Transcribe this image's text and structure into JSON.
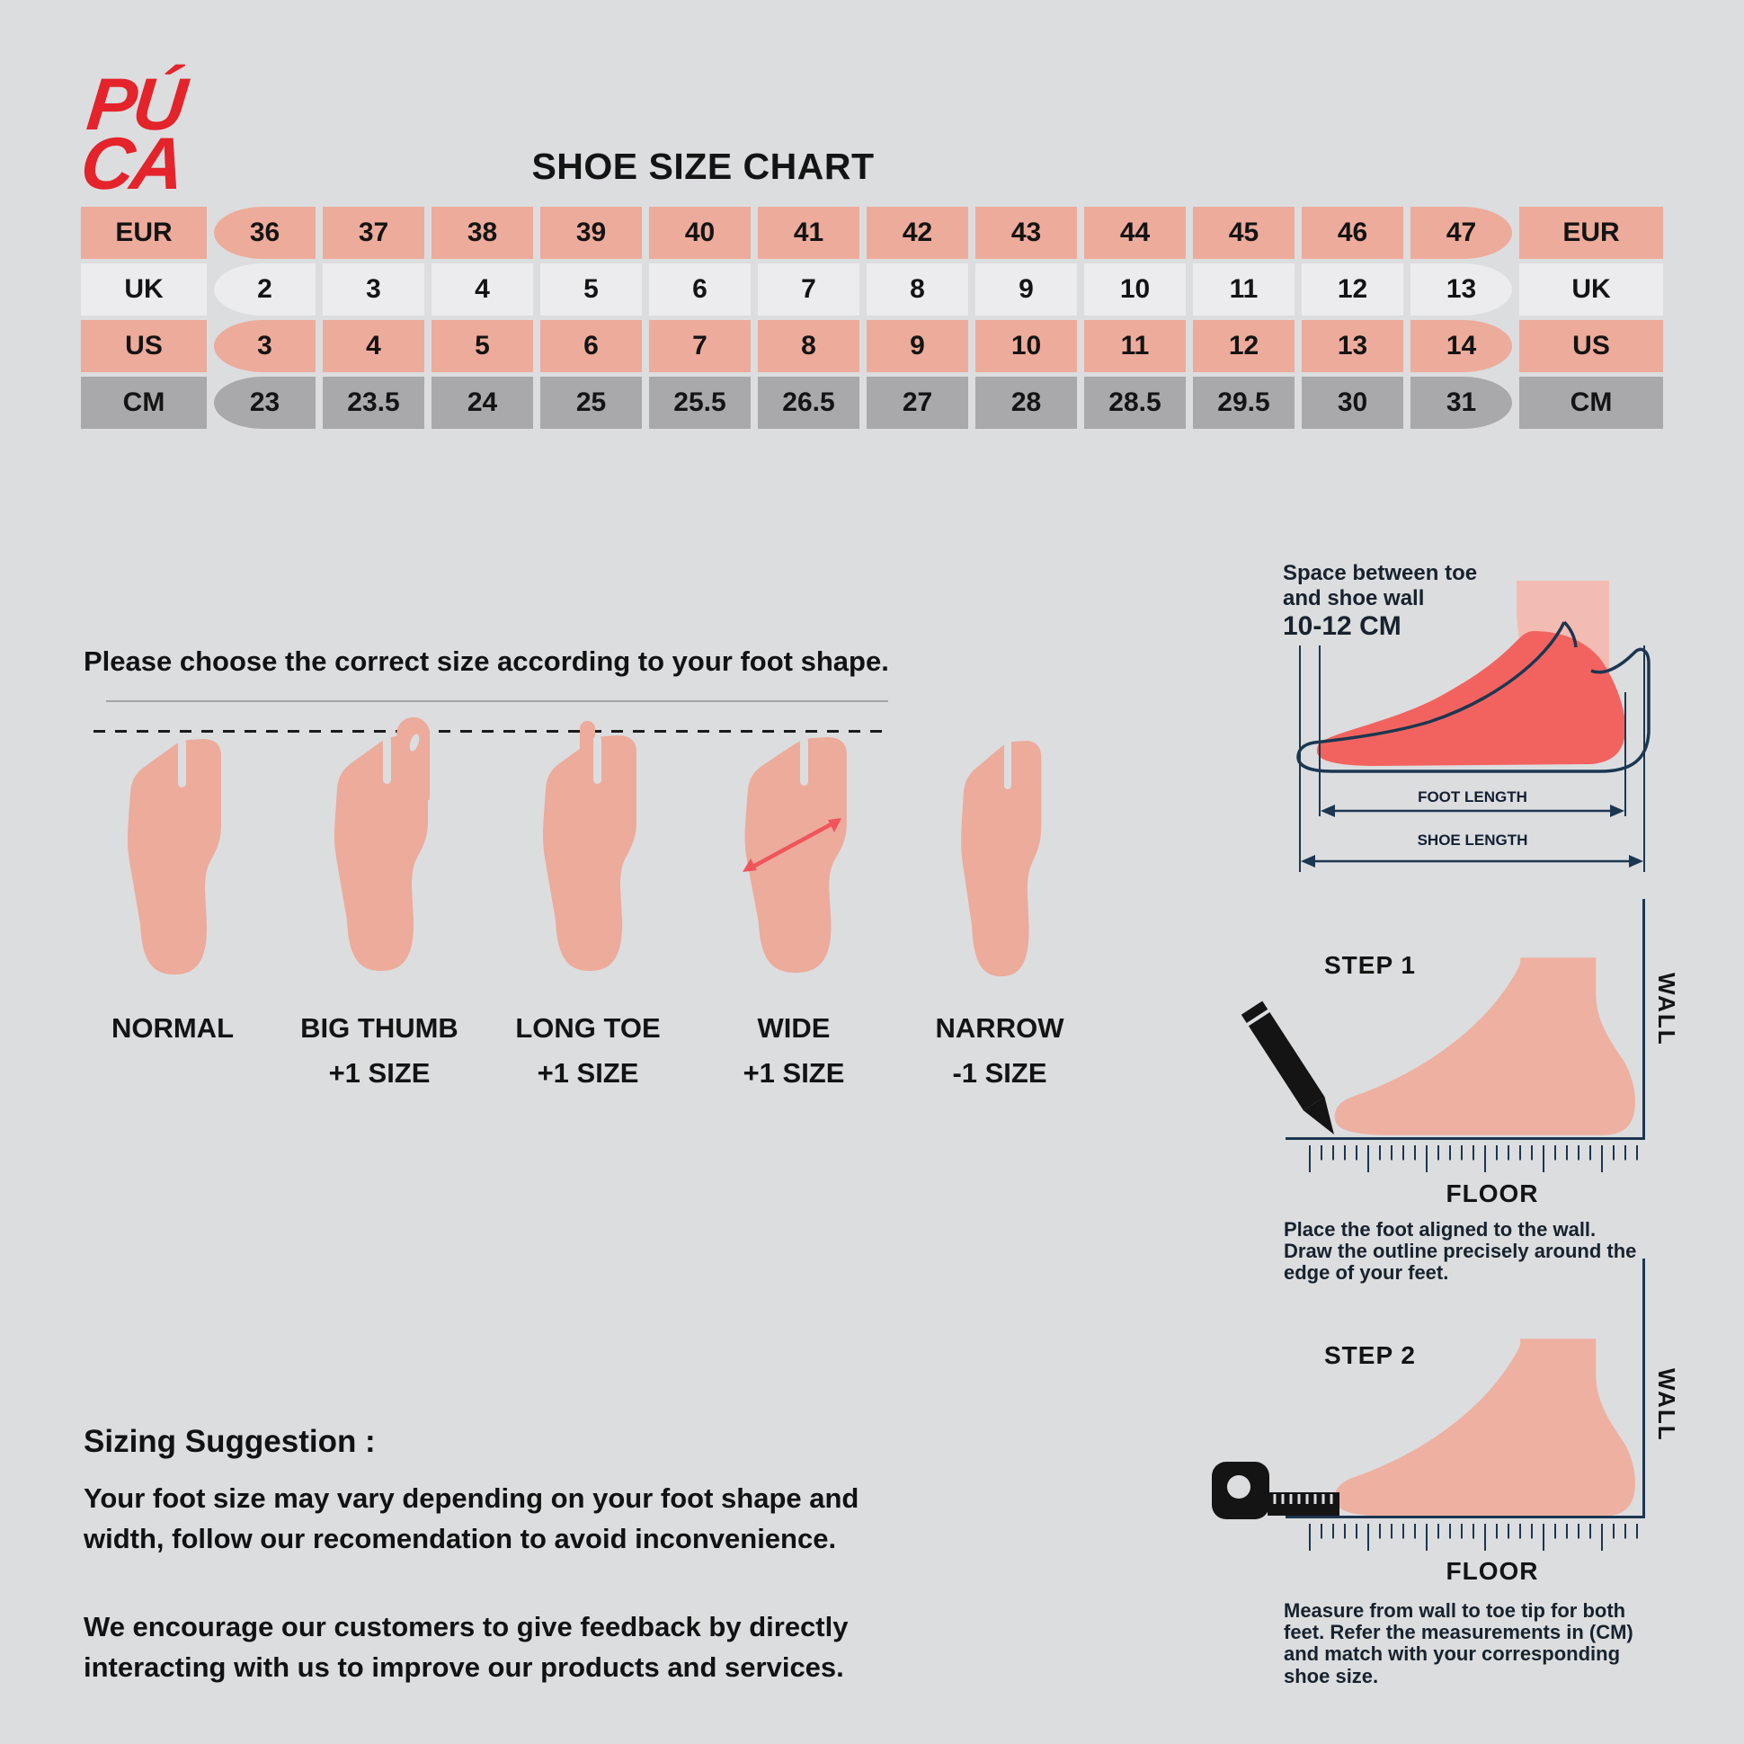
{
  "brand": {
    "line1": "PÚ",
    "line2": "CA"
  },
  "title": "SHOE SIZE CHART",
  "size_table": {
    "rows": [
      {
        "label": "EUR",
        "style": "salmon",
        "values": [
          "36",
          "37",
          "38",
          "39",
          "40",
          "41",
          "42",
          "43",
          "44",
          "45",
          "46",
          "47"
        ]
      },
      {
        "label": "UK",
        "style": "white",
        "values": [
          "2",
          "3",
          "4",
          "5",
          "6",
          "7",
          "8",
          "9",
          "10",
          "11",
          "12",
          "13"
        ]
      },
      {
        "label": "US",
        "style": "salmon",
        "values": [
          "3",
          "4",
          "5",
          "6",
          "7",
          "8",
          "9",
          "10",
          "11",
          "12",
          "13",
          "14"
        ]
      },
      {
        "label": "CM",
        "style": "gray",
        "values": [
          "23",
          "23.5",
          "24",
          "25",
          "25.5",
          "26.5",
          "27",
          "28",
          "28.5",
          "29.5",
          "30",
          "31"
        ]
      }
    ]
  },
  "foot_shapes": {
    "intro": "Please choose the correct size according to your foot shape.",
    "items": [
      {
        "name": "NORMAL",
        "note": ""
      },
      {
        "name": "BIG THUMB",
        "note": "+1 SIZE"
      },
      {
        "name": "LONG TOE",
        "note": "+1 SIZE"
      },
      {
        "name": "WIDE",
        "note": "+1 SIZE"
      },
      {
        "name": "NARROW",
        "note": "-1 SIZE"
      }
    ]
  },
  "measure_guide": {
    "space_note": "Space between toe\nand shoe wall",
    "space_value": "10-12 CM",
    "foot_length_label": "FOOT LENGTH",
    "shoe_length_label": "SHOE LENGTH",
    "step1": {
      "title": "STEP 1",
      "wall": "WALL",
      "floor": "FLOOR",
      "caption": "Place the foot aligned to the wall.\nDraw the outline precisely around the\nedge of your feet."
    },
    "step2": {
      "title": "STEP 2",
      "wall": "WALL",
      "floor": "FLOOR",
      "caption": "Measure from wall to toe tip for both\nfeet. Refer the measurements in (CM)\nand match with your corresponding\nshoe size."
    }
  },
  "sizing_suggestion": {
    "heading": "Sizing Suggestion :",
    "para1": "Your foot size may vary depending on your foot shape and\nwidth, follow our recomendation to avoid inconvenience.",
    "para2": "We encourage our customers to give feedback by directly\ninteracting with us to improve our products and services."
  },
  "colors": {
    "background": "#dcdddf",
    "salmon_cell": "#edab9b",
    "white_cell": "#ececee",
    "gray_cell": "#a9a9ab",
    "foot_salmon": "#ecab9b",
    "leg_pink": "#f3bcb2",
    "red_foot": "#f2635f",
    "navy": "#1b3751",
    "logo_red": "#e4232b",
    "arrow_red": "#f0555b",
    "text": "#141414"
  }
}
